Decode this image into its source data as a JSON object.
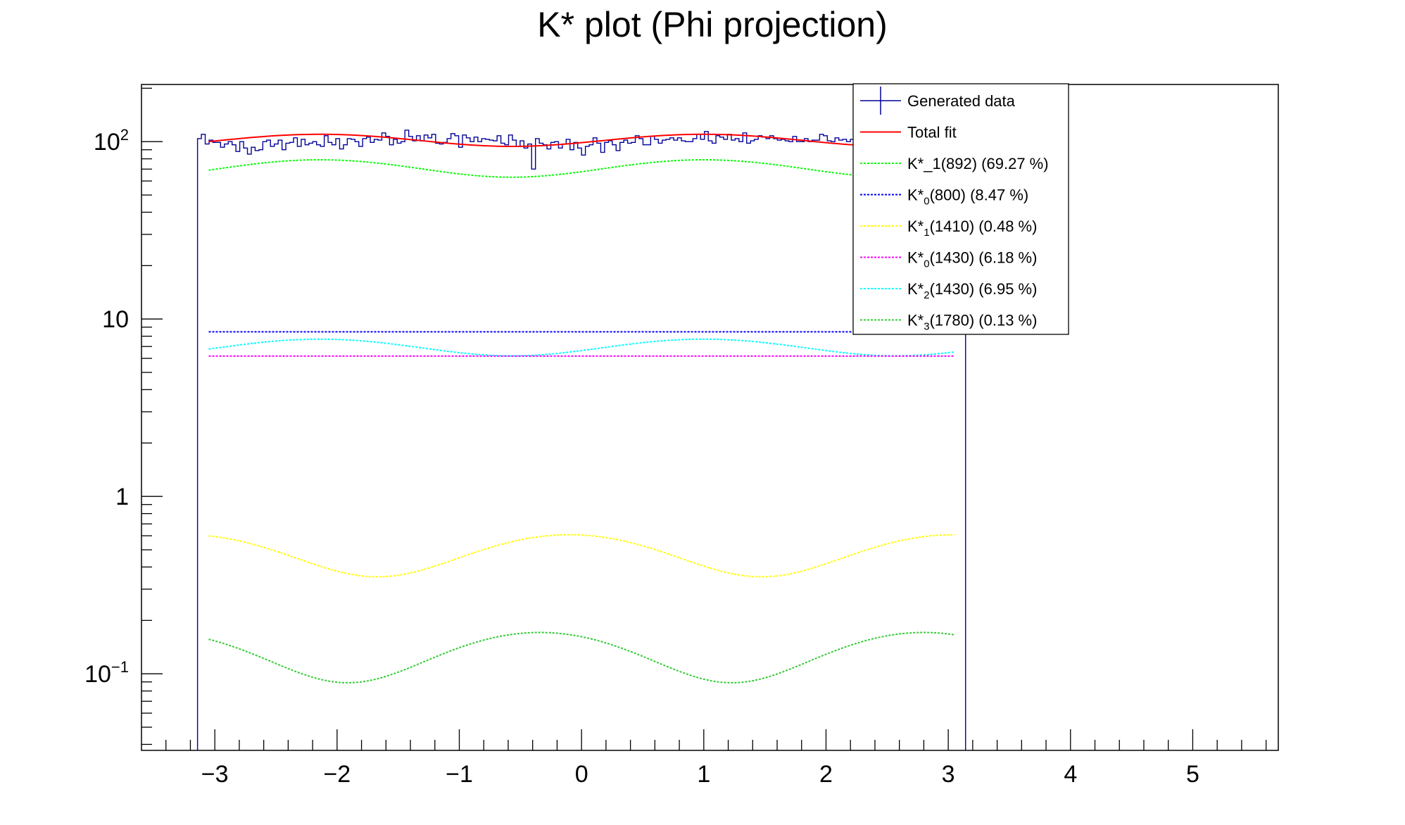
{
  "chart_data": {
    "type": "line",
    "title": "K* plot (Phi projection)",
    "xlabel": "",
    "ylabel": "",
    "x_scale": "linear",
    "y_scale": "log",
    "xlim": [
      -3.6,
      5.7
    ],
    "ylim": [
      0.037,
      210
    ],
    "grid": false,
    "legend_position": "top-right",
    "x_ticks": [
      {
        "v": -3,
        "label": "−3"
      },
      {
        "v": -2,
        "label": "−2"
      },
      {
        "v": -1,
        "label": "−1"
      },
      {
        "v": 0,
        "label": "0"
      },
      {
        "v": 1,
        "label": "1"
      },
      {
        "v": 2,
        "label": "2"
      },
      {
        "v": 3,
        "label": "3"
      },
      {
        "v": 4,
        "label": "4"
      },
      {
        "v": 5,
        "label": "5"
      }
    ],
    "y_ticks": [
      {
        "v": 0.1,
        "base": "10",
        "exp": "−1"
      },
      {
        "v": 1,
        "base": "1",
        "exp": ""
      },
      {
        "v": 10,
        "base": "10",
        "exp": ""
      },
      {
        "v": 100,
        "base": "10",
        "exp": "2"
      }
    ],
    "histogram": {
      "name": "Generated data",
      "color": "#000099",
      "x_min": -3.14159,
      "x_max": 3.14159,
      "values": [
        104,
        110,
        97,
        102,
        99,
        99,
        93,
        97,
        100,
        96,
        88,
        100,
        92,
        85,
        93,
        89,
        90,
        100,
        102,
        94,
        97,
        102,
        90,
        98,
        99,
        105,
        94,
        103,
        96,
        98,
        100,
        96,
        94,
        108,
        99,
        96,
        104,
        91,
        96,
        104,
        103,
        100,
        94,
        104,
        106,
        99,
        103,
        102,
        112,
        107,
        96,
        103,
        98,
        100,
        116,
        107,
        101,
        108,
        101,
        109,
        105,
        110,
        98,
        97,
        99,
        104,
        111,
        108,
        93,
        109,
        105,
        100,
        106,
        100,
        104,
        103,
        102,
        101,
        108,
        98,
        96,
        109,
        102,
        94,
        101,
        92,
        97,
        70,
        104,
        98,
        96,
        91,
        99,
        100,
        92,
        97,
        103,
        90,
        99,
        92,
        84,
        94,
        96,
        105,
        98,
        87,
        99,
        101,
        96,
        89,
        99,
        102,
        98,
        99,
        108,
        104,
        96,
        96,
        107,
        103,
        98,
        102,
        103,
        105,
        102,
        105,
        101,
        100,
        100,
        104,
        110,
        103,
        114,
        101,
        98,
        108,
        106,
        103,
        110,
        102,
        104,
        100,
        112,
        98,
        101,
        103,
        108,
        106,
        104,
        108,
        104,
        102,
        103,
        101,
        100,
        107,
        100,
        100,
        104,
        100,
        102,
        102,
        110,
        108,
        101,
        100,
        105,
        102,
        103,
        100,
        103,
        106,
        98,
        100,
        104,
        104,
        101,
        100,
        108,
        102,
        103,
        100,
        102,
        101,
        107,
        108,
        100,
        110,
        99,
        100,
        101,
        100,
        102,
        103,
        104,
        100,
        102,
        103,
        100,
        98
      ]
    },
    "series": [
      {
        "name": "Total fit",
        "color": "#ff0000",
        "dash": "solid",
        "width": 2,
        "kind": "cos2",
        "mean": 102,
        "amp": 8,
        "phase": 1.0
      },
      {
        "name": "K*_1(892) (69.27 %)",
        "color": "#00ff00",
        "dash": "dotted",
        "kind": "cos2",
        "mean": 71,
        "amp": 8,
        "phase": 1.0
      },
      {
        "name": "K*0(800) (8.47 %)",
        "color": "#0000ff",
        "dash": "dotted",
        "kind": "const",
        "mean": 8.47
      },
      {
        "name": "K*1(1410) (0.48 %)",
        "color": "#ffff00",
        "dash": "dotted",
        "kind": "cos2",
        "mean": 0.48,
        "amp": 0.128,
        "phase": -0.1
      },
      {
        "name": "K*0(1430) (6.18 %)",
        "color": "#ff00ff",
        "dash": "dotted",
        "kind": "const",
        "mean": 6.18
      },
      {
        "name": "K*2(1430) (6.95 %)",
        "color": "#00ffff",
        "dash": "dotted",
        "kind": "cos2",
        "mean": 6.95,
        "amp": 0.75,
        "phase": 1.0
      },
      {
        "name": "K*3(1780) (0.13 %)",
        "color": "#33cc33",
        "dash": "dotted",
        "kind": "cos2",
        "mean": 0.13,
        "amp": 0.041,
        "phase": 2.8
      }
    ]
  },
  "legend": {
    "entries": [
      {
        "text": "Generated data",
        "sub": "",
        "rest": "",
        "marker": "cross",
        "color": "#000099"
      },
      {
        "text": "Total fit",
        "sub": "",
        "rest": "",
        "marker": "solid",
        "color": "#ff0000"
      },
      {
        "text": "K*_1(892) (69.27 %)",
        "sub": "",
        "rest": "",
        "marker": "dotted",
        "color": "#00ff00"
      },
      {
        "text": "K*",
        "sub": "0",
        "rest": "(800) (8.47 %)",
        "marker": "dotted",
        "color": "#0000ff"
      },
      {
        "text": "K*",
        "sub": "1",
        "rest": "(1410) (0.48 %)",
        "marker": "dotted",
        "color": "#ffff00"
      },
      {
        "text": "K*",
        "sub": "0",
        "rest": "(1430) (6.18 %)",
        "marker": "dotted",
        "color": "#ff00ff"
      },
      {
        "text": "K*",
        "sub": "2",
        "rest": "(1430) (6.95 %)",
        "marker": "dotted",
        "color": "#00ffff"
      },
      {
        "text": "K*",
        "sub": "3",
        "rest": "(1780) (0.13 %)",
        "marker": "dotted",
        "color": "#33cc33"
      }
    ]
  }
}
